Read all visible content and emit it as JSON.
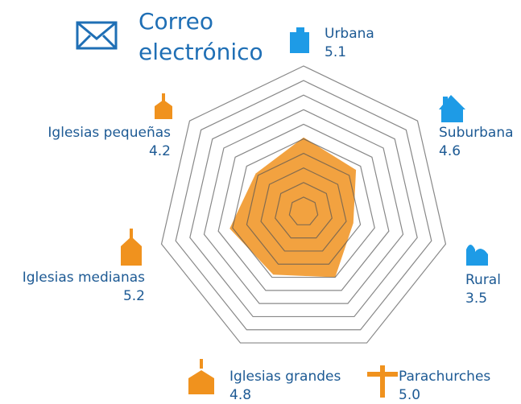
{
  "chart_data": {
    "type": "radar",
    "title": "Correo electrónico",
    "categories": [
      "Urbana",
      "Suburbana",
      "Rural",
      "Parachurches",
      "Iglesias grandes",
      "Iglesias medianas",
      "Iglesias pequeñas"
    ],
    "values": [
      5.1,
      4.6,
      3.5,
      5.0,
      4.8,
      5.2,
      4.2
    ],
    "value_labels": [
      "5.1",
      "4.6",
      "3.5",
      "5.0",
      "4.8",
      "5.2",
      "4.2"
    ],
    "color": "#f0921e",
    "ylim": [
      0,
      10
    ],
    "yticks": [
      1,
      2,
      3,
      4,
      5,
      6,
      7,
      8,
      9,
      10
    ],
    "grid": true
  }
}
